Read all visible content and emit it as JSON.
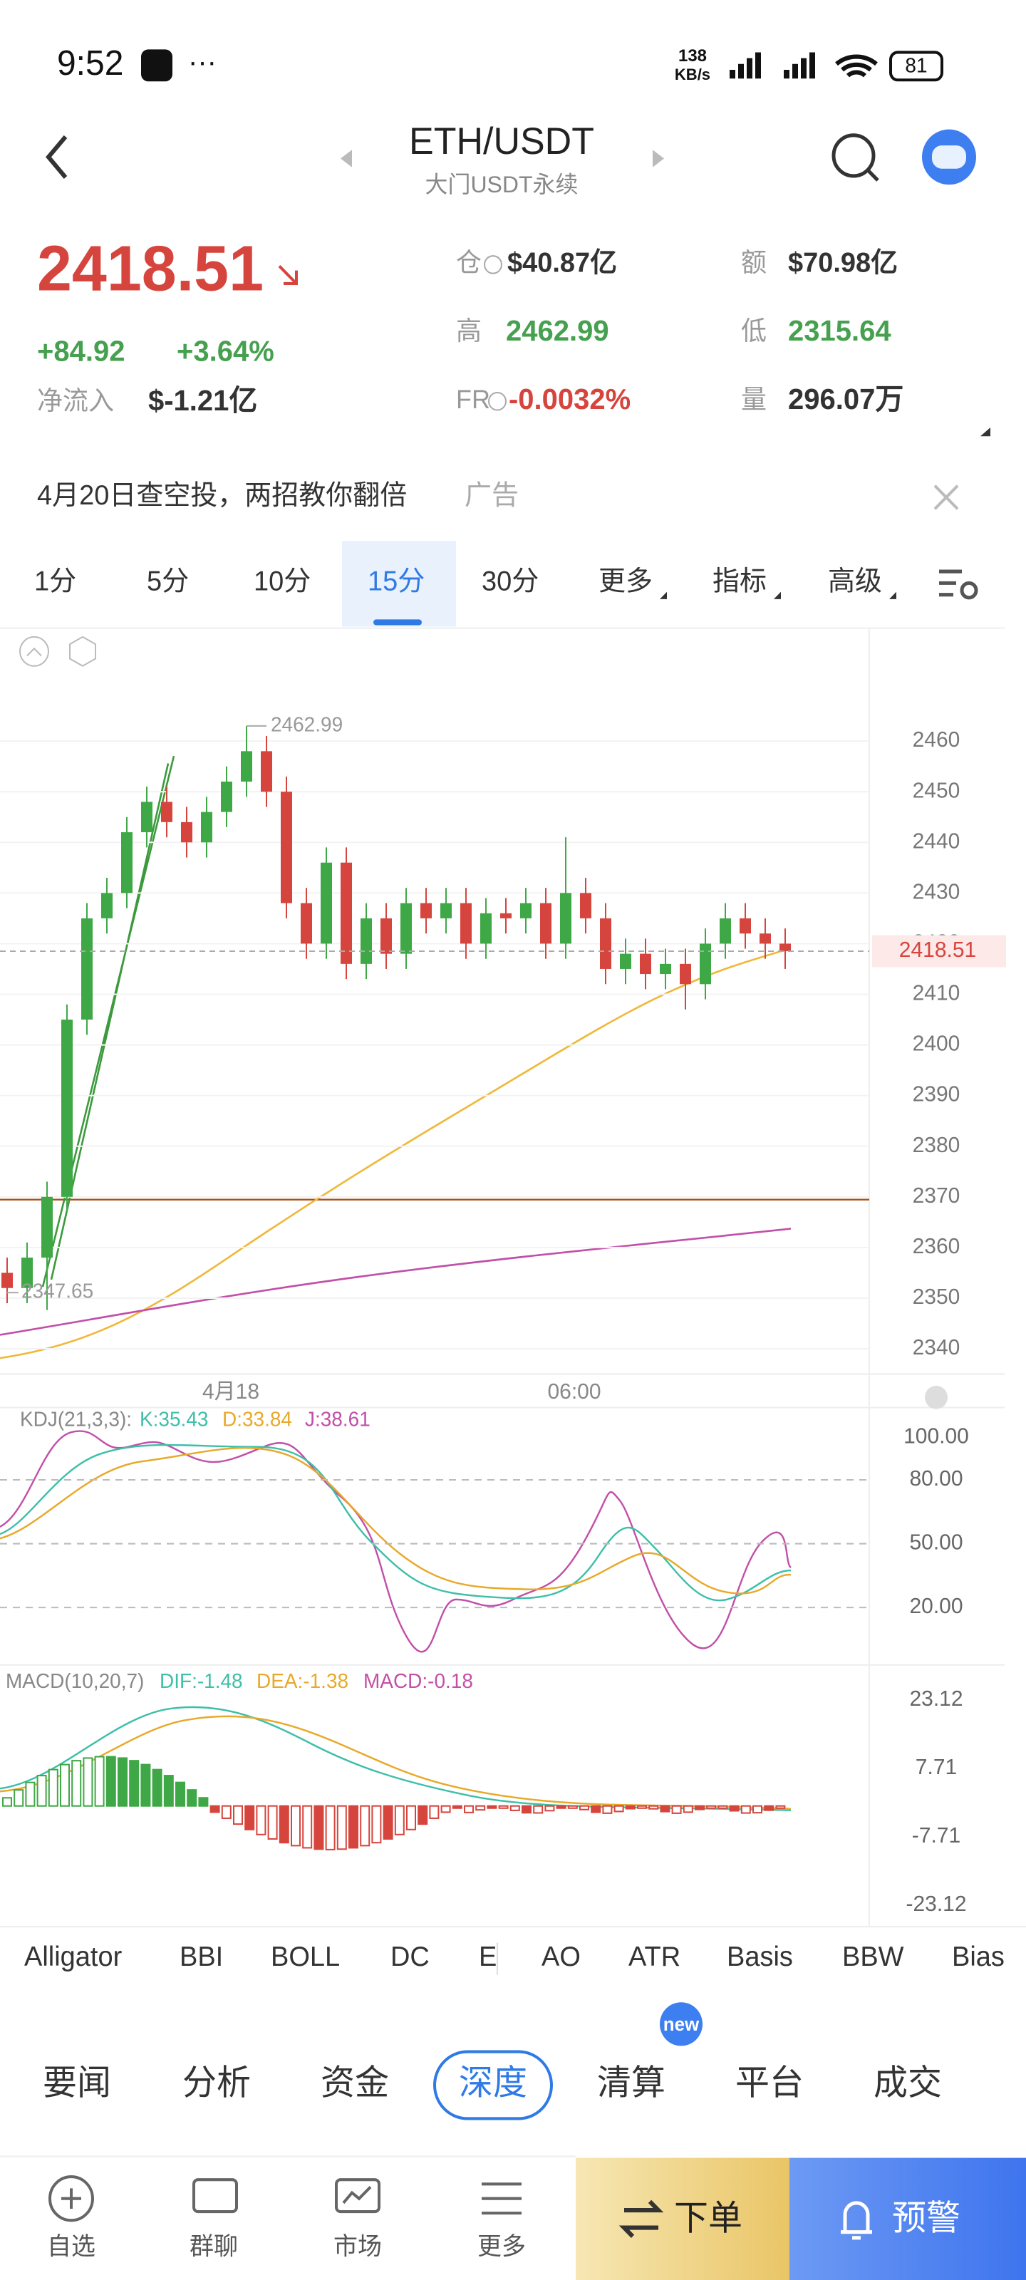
{
  "status": {
    "time": "9:52",
    "speed": "138",
    "speed_unit": "KB/s",
    "battery": "81"
  },
  "header": {
    "title": "ETH/USDT",
    "subtitle": "大门USDT永续"
  },
  "ticker": {
    "price": "2418.51",
    "change": "+84.92",
    "change_pct": "+3.64%",
    "netflow_label": "净流入",
    "netflow": "$-1.21亿",
    "stats": [
      {
        "label": "仓",
        "value": "$40.87亿"
      },
      {
        "label": "额",
        "value": "$70.98亿"
      },
      {
        "label": "高",
        "value": "2462.99"
      },
      {
        "label": "低",
        "value": "2315.64"
      },
      {
        "label": "FR",
        "value": "-0.0032%"
      },
      {
        "label": "量",
        "value": "296.07万"
      }
    ]
  },
  "ad": {
    "text": "4月20日查空投，两招教你翻倍",
    "tag": "广告"
  },
  "timeframes": [
    "1分",
    "5分",
    "10分",
    "15分",
    "30分",
    "更多",
    "指标",
    "高级"
  ],
  "chart_data": {
    "type": "candlestick",
    "ylim": [
      2335,
      2480
    ],
    "yticks": [
      2460,
      2450,
      2440,
      2430,
      2420,
      2410,
      2400,
      2390,
      2380,
      2370,
      2360,
      2350,
      2340
    ],
    "last_price": 2418.51,
    "last_price_label": "2418.51",
    "high_label": "2462.99",
    "low_label": "2347.65",
    "x_labels": [
      "4月18",
      "06:00"
    ],
    "open": [
      2355,
      2352,
      2358,
      2370,
      2405,
      2425,
      2430,
      2442,
      2448,
      2444,
      2440,
      2446,
      2452,
      2458,
      2450,
      2428,
      2420,
      2436,
      2416,
      2425,
      2418,
      2428,
      2425,
      2428,
      2420,
      2426,
      2425,
      2428,
      2420,
      2430,
      2425,
      2415,
      2418,
      2414,
      2416,
      2412,
      2420,
      2425,
      2422,
      2420
    ],
    "high": [
      2358,
      2361,
      2373,
      2408,
      2428,
      2433,
      2445,
      2451,
      2451,
      2447,
      2449,
      2455,
      2462.99,
      2461,
      2453,
      2431,
      2439,
      2439,
      2428,
      2428,
      2431,
      2431,
      2431,
      2431,
      2429,
      2429,
      2431,
      2431,
      2441,
      2433,
      2428,
      2421,
      2421,
      2419,
      2419,
      2423,
      2428,
      2428,
      2425,
      2423
    ],
    "low": [
      2349,
      2349,
      2347.65,
      2367,
      2402,
      2422,
      2427,
      2439,
      2441,
      2437,
      2437,
      2443,
      2449,
      2447,
      2425,
      2417,
      2417,
      2413,
      2413,
      2415,
      2415,
      2422,
      2422,
      2417,
      2417,
      2422,
      2422,
      2417,
      2417,
      2422,
      2412,
      2412,
      2411,
      2411,
      2407,
      2409,
      2417,
      2419,
      2417,
      2415
    ],
    "close": [
      2352,
      2358,
      2370,
      2405,
      2425,
      2430,
      2442,
      2448,
      2444,
      2440,
      2446,
      2452,
      2458,
      2450,
      2428,
      2420,
      2436,
      2416,
      2425,
      2418,
      2428,
      2425,
      2428,
      2420,
      2426,
      2425,
      2428,
      2420,
      2430,
      2425,
      2415,
      2418,
      2414,
      2416,
      2412,
      2420,
      2425,
      2422,
      2420,
      2418.51
    ]
  },
  "kdj": {
    "legend": "KDJ(21,3,3):",
    "k": "K:35.43",
    "d": "D:33.84",
    "j": "J:38.61",
    "ylim": [
      -7,
      114
    ],
    "yticks": [
      {
        "value": 100,
        "label": "100.00"
      },
      {
        "value": 80,
        "label": "80.00"
      },
      {
        "value": 50,
        "label": "50.00"
      },
      {
        "value": 20,
        "label": "20.00"
      }
    ]
  },
  "macd": {
    "legend": "MACD(10,20,7)",
    "dif": "DIF:-1.48",
    "dea": "DEA:-1.38",
    "macd": "MACD:-0.18",
    "ylim": [
      -28,
      31
    ],
    "yticks": [
      {
        "value": 23.12,
        "label": "23.12"
      },
      {
        "value": 7.71,
        "label": "7.71"
      },
      {
        "value": -7.71,
        "label": "-7.71"
      },
      {
        "value": -23.12,
        "label": "-23.12"
      }
    ]
  },
  "indicators": [
    "Alligator",
    "BBI",
    "BOLL",
    "DC",
    "E",
    "AO",
    "ATR",
    "Basis",
    "BBW",
    "Bias"
  ],
  "tabs": [
    "要闻",
    "分析",
    "资金",
    "深度",
    "清算",
    "平台",
    "成交"
  ],
  "badge": "new",
  "nav": [
    "自选",
    "群聊",
    "市场",
    "更多"
  ],
  "order": "下单",
  "alert": "预警"
}
